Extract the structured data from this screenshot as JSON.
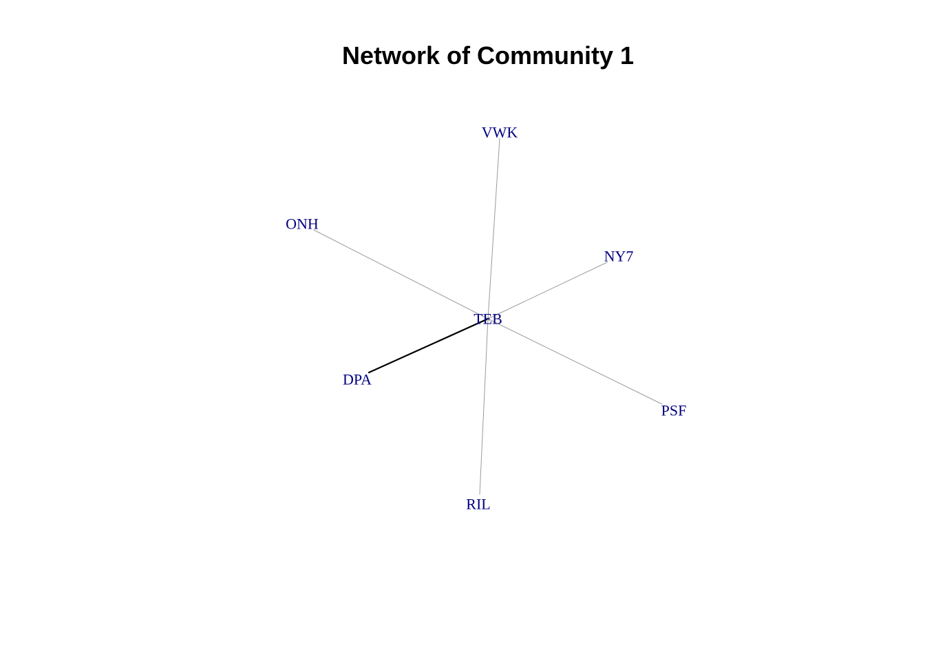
{
  "title": "Network of Community 1",
  "colors": {
    "background": "#ffffff",
    "title": "#000000",
    "label": "#000080",
    "edge_thin": "#9a9a9a",
    "edge_thick": "#000000"
  },
  "nodes": [
    {
      "id": "TEB",
      "label": "TEB"
    },
    {
      "id": "VWK",
      "label": "VWK"
    },
    {
      "id": "ONH",
      "label": "ONH"
    },
    {
      "id": "NY7",
      "label": "NY7"
    },
    {
      "id": "DPA",
      "label": "DPA"
    },
    {
      "id": "PSF",
      "label": "PSF"
    },
    {
      "id": "RIL",
      "label": "RIL"
    }
  ],
  "edges": [
    {
      "source": "TEB",
      "target": "VWK",
      "weight": 1
    },
    {
      "source": "TEB",
      "target": "ONH",
      "weight": 1
    },
    {
      "source": "TEB",
      "target": "NY7",
      "weight": 1
    },
    {
      "source": "TEB",
      "target": "DPA",
      "weight": 3
    },
    {
      "source": "TEB",
      "target": "PSF",
      "weight": 1
    },
    {
      "source": "TEB",
      "target": "RIL",
      "weight": 1
    }
  ]
}
